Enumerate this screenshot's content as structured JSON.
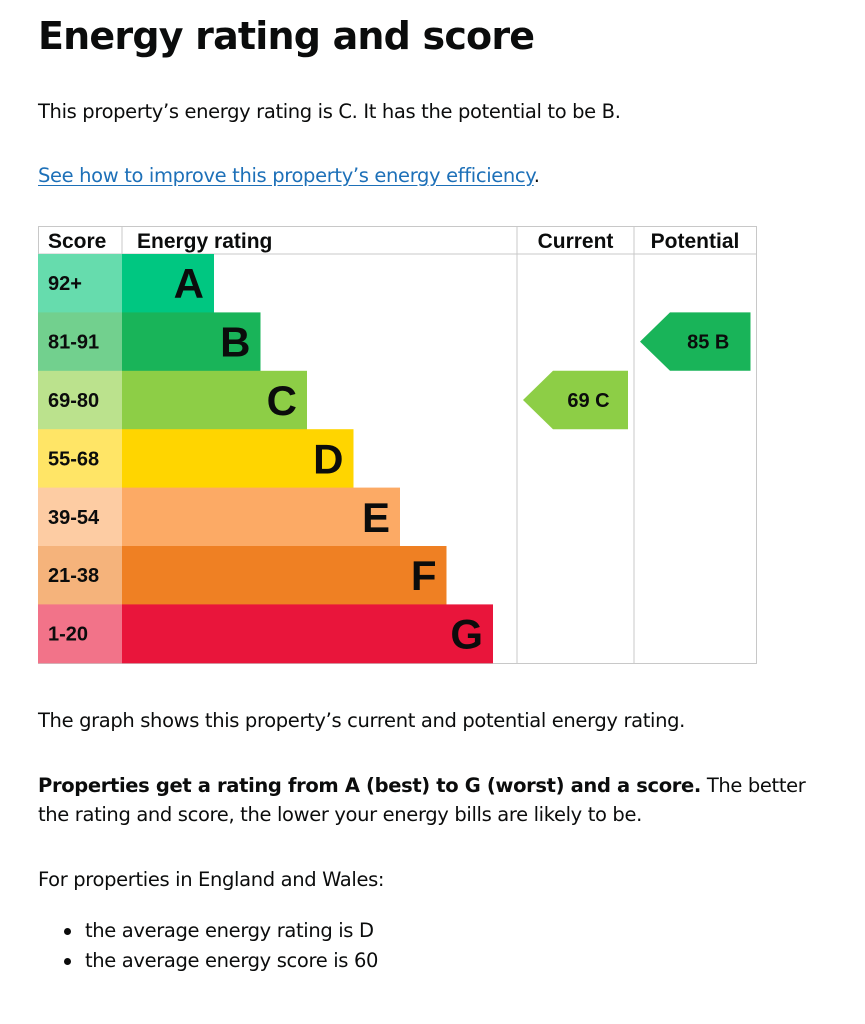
{
  "title": "Energy rating and score",
  "intro": "This property’s energy rating is C. It has the potential to be B.",
  "improve_link": {
    "text": "See how to improve this property’s energy efficiency",
    "trailing": "."
  },
  "chart_data": {
    "type": "table",
    "headers": {
      "score": "Score",
      "rating": "Energy rating",
      "current": "Current",
      "potential": "Potential"
    },
    "bands": [
      {
        "letter": "A",
        "range": "92+",
        "color": "#00c781",
        "score_color": "#66dcad"
      },
      {
        "letter": "B",
        "range": "81-91",
        "color": "#19b459",
        "score_color": "#72d08e"
      },
      {
        "letter": "C",
        "range": "69-80",
        "color": "#8dce46",
        "score_color": "#bbe28d"
      },
      {
        "letter": "D",
        "range": "55-68",
        "color": "#ffd500",
        "score_color": "#ffe566"
      },
      {
        "letter": "E",
        "range": "39-54",
        "color": "#fcaa65",
        "score_color": "#fdcca3"
      },
      {
        "letter": "F",
        "range": "21-38",
        "color": "#ef8023",
        "score_color": "#f5b37b"
      },
      {
        "letter": "G",
        "range": "1-20",
        "color": "#e9153b",
        "score_color": "#f27389"
      }
    ],
    "current": {
      "score": 69,
      "letter": "C",
      "label": "69  C"
    },
    "potential": {
      "score": 85,
      "letter": "B",
      "label": "85  B"
    }
  },
  "graph_note": "The graph shows this property’s current and potential energy rating.",
  "rating_explainer": {
    "bold": "Properties get a rating from A (best) to G (worst) and a score.",
    "rest_line1": " The better",
    "line2": "the rating and score, the lower your energy bills are likely to be."
  },
  "averages_intro": "For properties in England and Wales:",
  "averages": [
    "the average energy rating is D",
    "the average energy score is 60"
  ]
}
